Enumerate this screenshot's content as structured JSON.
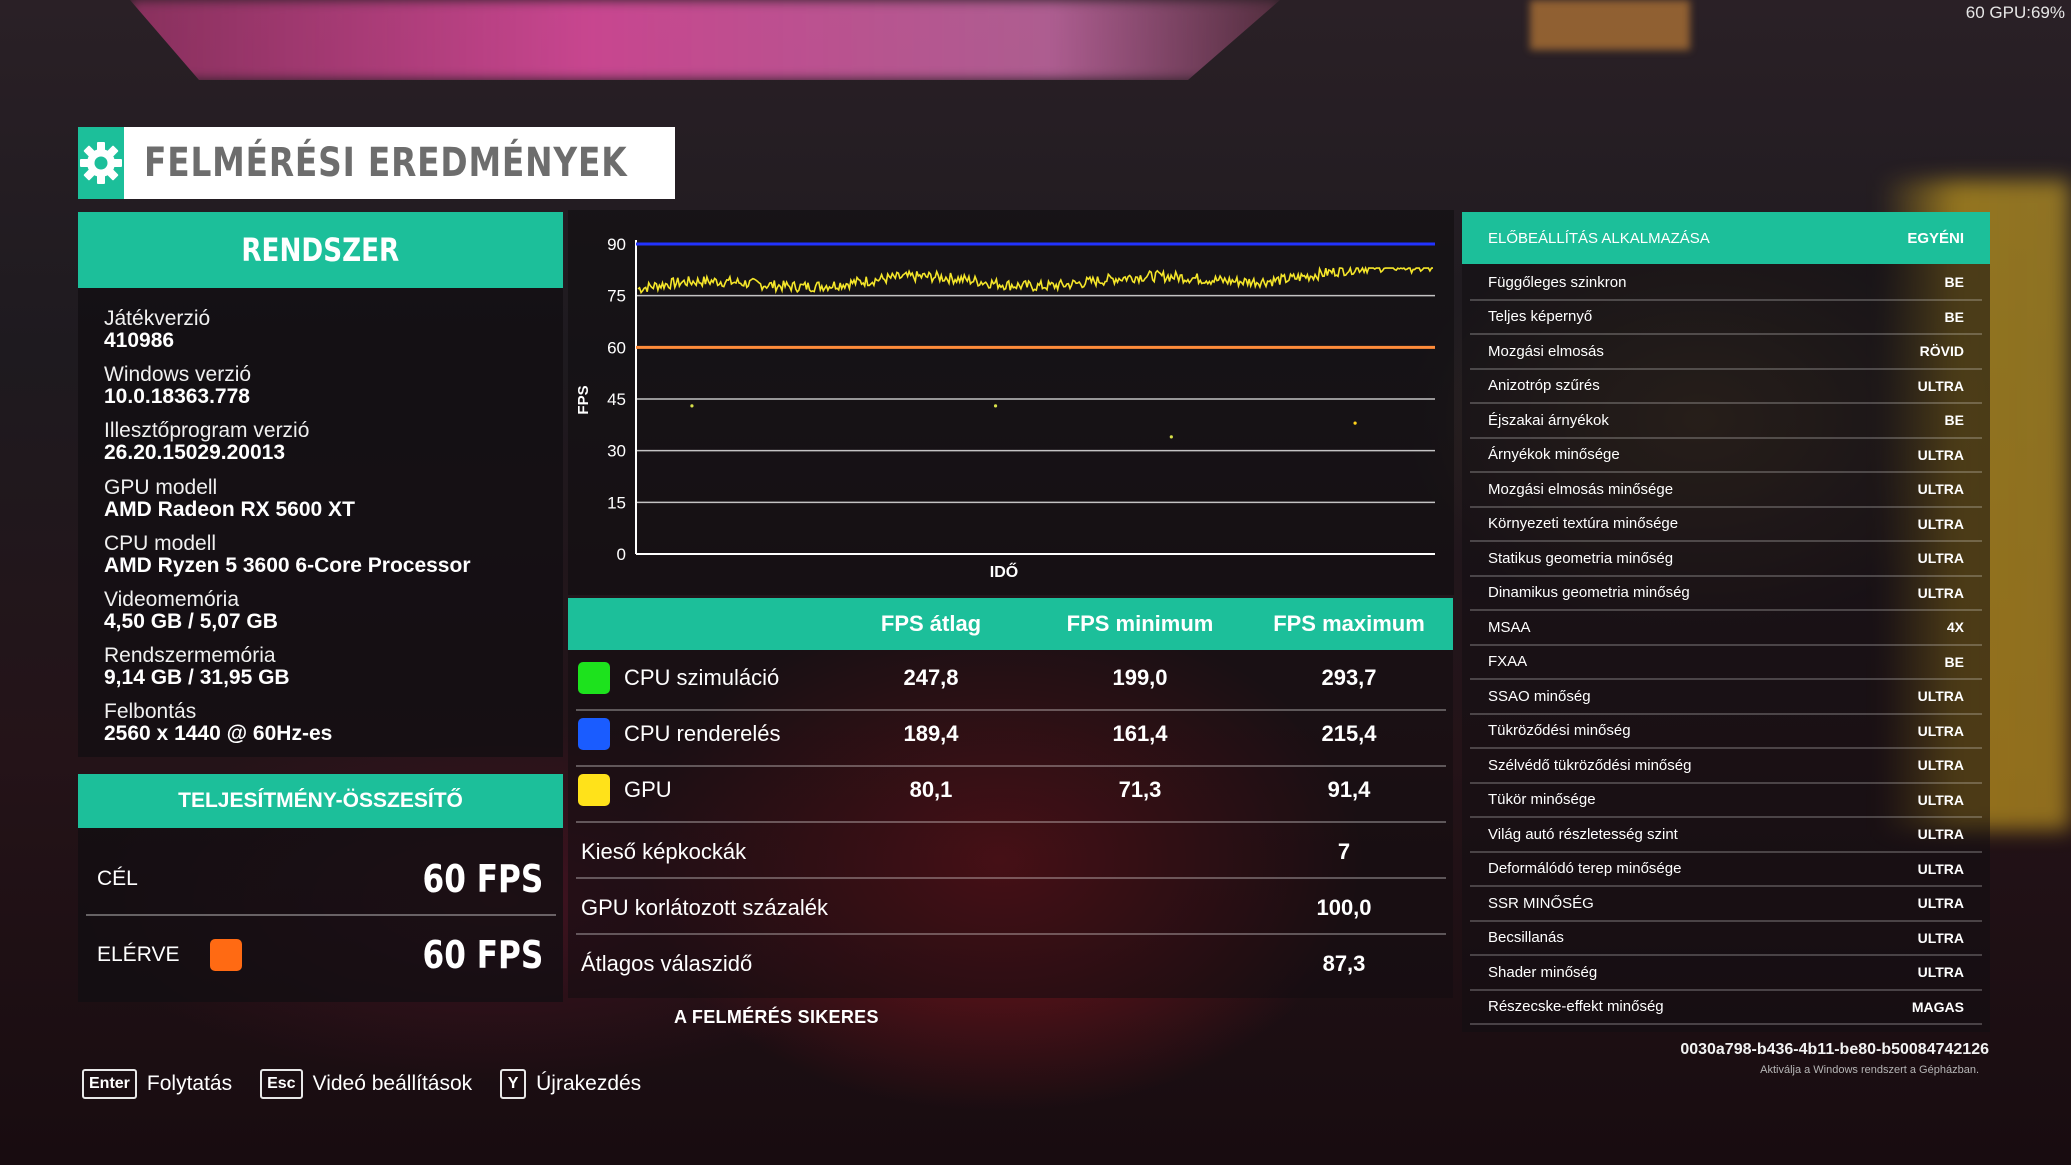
{
  "overlay": {
    "fps_gpu": "60 GPU:69%"
  },
  "title": {
    "icon": "gear-icon",
    "text": "FELMÉRÉSI EREDMÉNYEK"
  },
  "system": {
    "header": "RENDSZER",
    "items": [
      {
        "label": "Játékverzió",
        "value": "410986"
      },
      {
        "label": "Windows verzió",
        "value": "10.0.18363.778"
      },
      {
        "label": "Illesztőprogram verzió",
        "value": "26.20.15029.20013"
      },
      {
        "label": "GPU modell",
        "value": "AMD Radeon RX 5600 XT"
      },
      {
        "label": "CPU modell",
        "value": "AMD Ryzen 5 3600 6-Core Processor"
      },
      {
        "label": "Videomemória",
        "value": "4,50 GB / 5,07 GB"
      },
      {
        "label": "Rendszermemória",
        "value": "9,14 GB / 31,95 GB"
      },
      {
        "label": "Felbontás",
        "value": "2560 x 1440 @ 60Hz-es"
      }
    ]
  },
  "performance": {
    "header": "TELJESÍTMÉNY-ÖSSZESÍTŐ",
    "target_label": "CÉL",
    "target_value": "60 FPS",
    "achieved_label": "ELÉRVE",
    "achieved_value": "60 FPS",
    "achieved_color": "#ff6a13"
  },
  "chart_data": {
    "type": "line",
    "ylabel": "FPS",
    "xlabel": "IDŐ",
    "ylim": [
      0,
      90
    ],
    "yticks": [
      "90",
      "75",
      "60",
      "45",
      "30",
      "15",
      "0"
    ],
    "series": [
      {
        "name": "GPU",
        "color": "#f5e62a",
        "approx_range": [
          74,
          83
        ],
        "trend_start": 77,
        "trend_end": 82
      },
      {
        "name": "CPU szimuláció",
        "color": "#2233ff",
        "constant": 90
      },
      {
        "name": "Cél",
        "color": "#ff8c3a",
        "constant": 60
      }
    ],
    "outliers": [
      43,
      43,
      34,
      38
    ]
  },
  "fps_table": {
    "headers": [
      "FPS átlag",
      "FPS minimum",
      "FPS maximum"
    ],
    "rows": [
      {
        "name": "CPU szimuláció",
        "color": "#1de21d",
        "avg": "247,8",
        "min": "199,0",
        "max": "293,7"
      },
      {
        "name": "CPU renderelés",
        "color": "#1a5cff",
        "avg": "189,4",
        "min": "161,4",
        "max": "215,4"
      },
      {
        "name": "GPU",
        "color": "#ffe21a",
        "avg": "80,1",
        "min": "71,3",
        "max": "91,4"
      }
    ],
    "stats": [
      {
        "name": "Kieső képkockák",
        "value": "7"
      },
      {
        "name": "GPU korlátozott százalék",
        "value": "100,0"
      },
      {
        "name": "Átlagos válaszidő",
        "value": "87,3"
      }
    ],
    "status": "A FELMÉRÉS SIKERES"
  },
  "settings": {
    "header_left": "ELŐBEÁLLÍTÁS ALKALMAZÁSA",
    "header_right": "EGYÉNI",
    "rows": [
      {
        "name": "Függőleges szinkron",
        "value": "BE"
      },
      {
        "name": "Teljes képernyő",
        "value": "BE"
      },
      {
        "name": "Mozgási elmosás",
        "value": "RÖVID"
      },
      {
        "name": "Anizotróp szűrés",
        "value": "ULTRA"
      },
      {
        "name": "Éjszakai árnyékok",
        "value": "BE"
      },
      {
        "name": "Árnyékok minősége",
        "value": "ULTRA"
      },
      {
        "name": "Mozgási elmosás minősége",
        "value": "ULTRA"
      },
      {
        "name": "Környezeti textúra minősége",
        "value": "ULTRA"
      },
      {
        "name": "Statikus geometria minőség",
        "value": "ULTRA"
      },
      {
        "name": "Dinamikus geometria minőség",
        "value": "ULTRA"
      },
      {
        "name": "MSAA",
        "value": "4X"
      },
      {
        "name": "FXAA",
        "value": "BE"
      },
      {
        "name": "SSAO minőség",
        "value": "ULTRA"
      },
      {
        "name": "Tükröződési minőség",
        "value": "ULTRA"
      },
      {
        "name": "Szélvédő tükröződési minőség",
        "value": "ULTRA"
      },
      {
        "name": "Tükör minősége",
        "value": "ULTRA"
      },
      {
        "name": "Világ autó részletesség szint",
        "value": "ULTRA"
      },
      {
        "name": "Deformálódó terep minősége",
        "value": "ULTRA"
      },
      {
        "name": "SSR MINŐSÉG",
        "value": "ULTRA"
      },
      {
        "name": "Becsillanás",
        "value": "ULTRA"
      },
      {
        "name": "Shader minőség",
        "value": "ULTRA"
      },
      {
        "name": "Részecske-effekt minőség",
        "value": "MAGAS"
      }
    ]
  },
  "watermark": {
    "id": "0030a798-b436-4b11-be80-b50084742126",
    "activate": "Aktiválja a Windows rendszert a Gépházban."
  },
  "footer": [
    {
      "key": "Enter",
      "label": "Folytatás"
    },
    {
      "key": "Esc",
      "label": "Videó beállítások"
    },
    {
      "key": "Y",
      "label": "Újrakezdés"
    }
  ]
}
